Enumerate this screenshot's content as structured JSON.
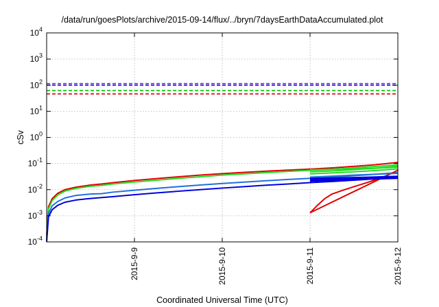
{
  "chart_data": {
    "type": "line",
    "title": "/data/run/goesPlots/archive/2015-09-14/flux/../bryn/7daysEarthDataAccumulated.plot",
    "xlabel": "Coordinated Universal Time (UTC)",
    "ylabel": "cSv",
    "x_scale": "date",
    "xlim": [
      "2015-09-08 00:00",
      "2015-09-12 00:00"
    ],
    "x_ticks": [
      "2015-9-9",
      "2015-9-10",
      "2015-9-11",
      "2015-9-12"
    ],
    "y_scale": "log",
    "ylim": [
      0.0001,
      10000
    ],
    "y_ticks": [
      {
        "value": 0.0001,
        "base": "10",
        "exp": "-4"
      },
      {
        "value": 0.001,
        "base": "10",
        "exp": "-3"
      },
      {
        "value": 0.01,
        "base": "10",
        "exp": "-2"
      },
      {
        "value": 0.1,
        "base": "10",
        "exp": "-1"
      },
      {
        "value": 1,
        "base": "10",
        "exp": "0"
      },
      {
        "value": 10,
        "base": "10",
        "exp": "1"
      },
      {
        "value": 100,
        "base": "10",
        "exp": "2"
      },
      {
        "value": 1000,
        "base": "10",
        "exp": "3"
      },
      {
        "value": 10000,
        "base": "10",
        "exp": "4"
      }
    ],
    "grid": true,
    "legend": "none",
    "thresholds": [
      {
        "value": 115,
        "color": "#8a2be2"
      },
      {
        "value": 100,
        "color": "#0000cc"
      },
      {
        "value": 62,
        "color": "#00cc00"
      },
      {
        "value": 46,
        "color": "#e00000"
      }
    ],
    "series": [
      {
        "color": "#e00000",
        "width": 2,
        "points": [
          [
            "2015-09-08 00:00",
            0.00018
          ],
          [
            "2015-09-08 00:30",
            0.0022
          ],
          [
            "2015-09-08 01:30",
            0.0045
          ],
          [
            "2015-09-08 03:00",
            0.0072
          ],
          [
            "2015-09-08 05:00",
            0.01
          ],
          [
            "2015-09-08 08:00",
            0.0125
          ],
          [
            "2015-09-08 12:00",
            0.015
          ],
          [
            "2015-09-08 15:00",
            0.0165
          ],
          [
            "2015-09-08 18:00",
            0.0185
          ],
          [
            "2015-09-09 00:00",
            0.0225
          ],
          [
            "2015-09-09 06:00",
            0.0265
          ],
          [
            "2015-09-09 12:00",
            0.031
          ],
          [
            "2015-09-09 18:00",
            0.036
          ],
          [
            "2015-09-10 00:00",
            0.041
          ],
          [
            "2015-09-10 06:00",
            0.046
          ],
          [
            "2015-09-10 12:00",
            0.051
          ],
          [
            "2015-09-10 18:00",
            0.056
          ],
          [
            "2015-09-11 00:00",
            0.061
          ],
          [
            "2015-09-11 06:00",
            0.068
          ],
          [
            "2015-09-11 12:00",
            0.078
          ],
          [
            "2015-09-11 18:00",
            0.09
          ],
          [
            "2015-09-12 00:00",
            0.11
          ]
        ]
      },
      {
        "color": "#22dd22",
        "width": 2,
        "points": [
          [
            "2015-09-08 00:00",
            0.00015
          ],
          [
            "2015-09-08 00:30",
            0.0018
          ],
          [
            "2015-09-08 01:30",
            0.0038
          ],
          [
            "2015-09-08 03:00",
            0.0062
          ],
          [
            "2015-09-08 05:00",
            0.0088
          ],
          [
            "2015-09-08 08:00",
            0.0112
          ],
          [
            "2015-09-08 12:00",
            0.0135
          ],
          [
            "2015-09-08 15:00",
            0.0145
          ],
          [
            "2015-09-08 18:00",
            0.0165
          ],
          [
            "2015-09-09 00:00",
            0.0195
          ],
          [
            "2015-09-09 06:00",
            0.023
          ],
          [
            "2015-09-09 12:00",
            0.027
          ],
          [
            "2015-09-09 18:00",
            0.031
          ],
          [
            "2015-09-10 00:00",
            0.036
          ],
          [
            "2015-09-10 06:00",
            0.04
          ],
          [
            "2015-09-10 12:00",
            0.045
          ],
          [
            "2015-09-10 18:00",
            0.05
          ],
          [
            "2015-09-11 00:00",
            0.055
          ],
          [
            "2015-09-11 06:00",
            0.06
          ],
          [
            "2015-09-11 12:00",
            0.068
          ],
          [
            "2015-09-11 18:00",
            0.077
          ],
          [
            "2015-09-12 00:00",
            0.09
          ]
        ]
      },
      {
        "color": "#1e6fdc",
        "width": 2,
        "points": [
          [
            "2015-09-08 00:00",
            0.00012
          ],
          [
            "2015-09-08 00:30",
            0.0012
          ],
          [
            "2015-09-08 01:30",
            0.0024
          ],
          [
            "2015-09-08 03:00",
            0.0035
          ],
          [
            "2015-09-08 05:00",
            0.0048
          ],
          [
            "2015-09-08 08:00",
            0.006
          ],
          [
            "2015-09-08 12:00",
            0.0068
          ],
          [
            "2015-09-08 15:00",
            0.007
          ],
          [
            "2015-09-08 18:00",
            0.008
          ],
          [
            "2015-09-09 00:00",
            0.0095
          ],
          [
            "2015-09-09 06:00",
            0.0112
          ],
          [
            "2015-09-09 12:00",
            0.013
          ],
          [
            "2015-09-09 18:00",
            0.015
          ],
          [
            "2015-09-10 00:00",
            0.0172
          ],
          [
            "2015-09-10 06:00",
            0.0195
          ],
          [
            "2015-09-10 12:00",
            0.022
          ],
          [
            "2015-09-10 18:00",
            0.0245
          ],
          [
            "2015-09-11 00:00",
            0.027
          ],
          [
            "2015-09-11 06:00",
            0.03
          ],
          [
            "2015-09-11 12:00",
            0.034
          ],
          [
            "2015-09-11 18:00",
            0.039
          ],
          [
            "2015-09-12 00:00",
            0.045
          ]
        ]
      },
      {
        "color": "#0000dd",
        "width": 2,
        "points": [
          [
            "2015-09-08 00:00",
            0.0001
          ],
          [
            "2015-09-08 00:30",
            0.0009
          ],
          [
            "2015-09-08 01:30",
            0.0017
          ],
          [
            "2015-09-08 03:00",
            0.0025
          ],
          [
            "2015-09-08 05:00",
            0.0033
          ],
          [
            "2015-09-08 08:00",
            0.004
          ],
          [
            "2015-09-08 12:00",
            0.0046
          ],
          [
            "2015-09-08 18:00",
            0.0054
          ],
          [
            "2015-09-09 00:00",
            0.0064
          ],
          [
            "2015-09-09 06:00",
            0.0075
          ],
          [
            "2015-09-09 12:00",
            0.0087
          ],
          [
            "2015-09-09 18:00",
            0.01
          ],
          [
            "2015-09-10 00:00",
            0.0115
          ],
          [
            "2015-09-10 06:00",
            0.013
          ],
          [
            "2015-09-10 12:00",
            0.0148
          ],
          [
            "2015-09-10 18:00",
            0.0165
          ],
          [
            "2015-09-11 00:00",
            0.0185
          ],
          [
            "2015-09-11 06:00",
            0.0205
          ],
          [
            "2015-09-11 12:00",
            0.023
          ],
          [
            "2015-09-11 18:00",
            0.026
          ],
          [
            "2015-09-12 00:00",
            0.03
          ]
        ]
      },
      {
        "color": "#e00000",
        "width": 2,
        "points": [
          [
            "2015-09-11 00:00",
            0.0013
          ],
          [
            "2015-09-11 02:00",
            0.0025
          ],
          [
            "2015-09-11 04:00",
            0.0045
          ],
          [
            "2015-09-11 06:00",
            0.0068
          ],
          [
            "2015-09-11 09:00",
            0.0095
          ],
          [
            "2015-09-11 12:00",
            0.013
          ],
          [
            "2015-09-11 15:00",
            0.0175
          ],
          [
            "2015-09-11 18:00",
            0.024
          ],
          [
            "2015-09-11 21:00",
            0.035
          ],
          [
            "2015-09-12 00:00",
            0.055
          ],
          [
            "2015-09-11 00:00",
            0.0013
          ]
        ]
      },
      {
        "color": "#22dd22",
        "width": 2,
        "points": [
          [
            "2015-09-11 00:00",
            0.058
          ],
          [
            "2015-09-11 06:00",
            0.06
          ],
          [
            "2015-09-11 12:00",
            0.062
          ],
          [
            "2015-09-11 18:00",
            0.066
          ],
          [
            "2015-09-12 00:00",
            0.072
          ]
        ]
      },
      {
        "color": "#22dd22",
        "width": 2,
        "points": [
          [
            "2015-09-11 00:00",
            0.048
          ],
          [
            "2015-09-11 06:00",
            0.052
          ],
          [
            "2015-09-11 12:00",
            0.058
          ],
          [
            "2015-09-11 18:00",
            0.066
          ],
          [
            "2015-09-12 00:00",
            0.08
          ]
        ]
      },
      {
        "color": "#22dd22",
        "width": 2,
        "points": [
          [
            "2015-09-11 00:00",
            0.04
          ],
          [
            "2015-09-11 08:00",
            0.045
          ],
          [
            "2015-09-11 16:00",
            0.052
          ],
          [
            "2015-09-12 00:00",
            0.062
          ]
        ]
      },
      {
        "color": "#1e6fdc",
        "width": 2,
        "points": [
          [
            "2015-09-11 00:00",
            0.03
          ],
          [
            "2015-09-11 12:00",
            0.036
          ],
          [
            "2015-09-12 00:00",
            0.042
          ]
        ]
      },
      {
        "color": "#0000dd",
        "width": 2.5,
        "points": [
          [
            "2015-09-11 00:00",
            0.0265
          ],
          [
            "2015-09-11 12:00",
            0.0285
          ],
          [
            "2015-09-12 00:00",
            0.032
          ]
        ]
      },
      {
        "color": "#0000dd",
        "width": 2.5,
        "points": [
          [
            "2015-09-11 00:00",
            0.0235
          ],
          [
            "2015-09-11 12:00",
            0.026
          ],
          [
            "2015-09-12 00:00",
            0.029
          ]
        ]
      },
      {
        "color": "#0000dd",
        "width": 2.5,
        "points": [
          [
            "2015-09-11 00:00",
            0.0215
          ],
          [
            "2015-09-11 12:00",
            0.0245
          ],
          [
            "2015-09-12 00:00",
            0.0275
          ]
        ]
      }
    ]
  }
}
